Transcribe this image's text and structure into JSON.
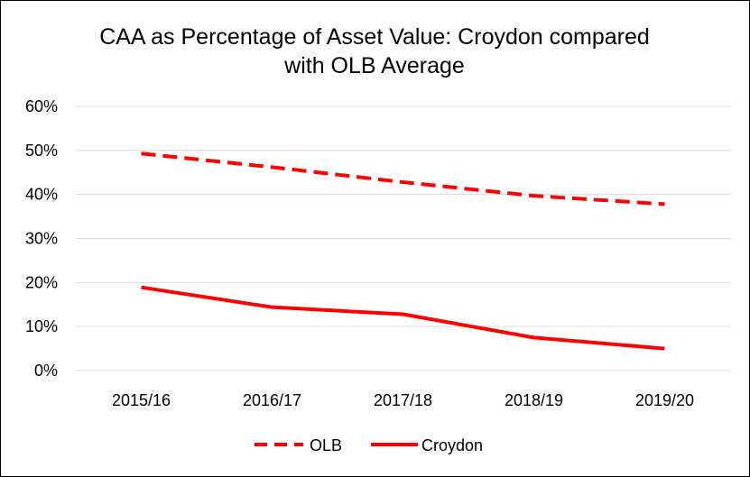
{
  "chart_data": {
    "type": "line",
    "title_lines": [
      "CAA as Percentage of Asset Value: Croydon compared",
      "with OLB Average"
    ],
    "categories": [
      "2015/16",
      "2016/17",
      "2017/18",
      "2018/19",
      "2019/20"
    ],
    "ylim": [
      0,
      60
    ],
    "yticks": [
      0,
      10,
      20,
      30,
      40,
      50,
      60
    ],
    "ytick_labels": [
      "0%",
      "10%",
      "20%",
      "30%",
      "40%",
      "50%",
      "60%"
    ],
    "grid": "horizontal",
    "legend_position": "bottom",
    "series": [
      {
        "name": "OLB",
        "values": [
          49.3,
          46.2,
          42.8,
          39.7,
          37.8
        ],
        "color": "#ff0000",
        "style": "dashed"
      },
      {
        "name": "Croydon",
        "values": [
          18.9,
          14.4,
          12.8,
          7.5,
          5.0
        ],
        "color": "#ff0000",
        "style": "solid"
      }
    ],
    "gridline_color": "#d9d9d9"
  }
}
